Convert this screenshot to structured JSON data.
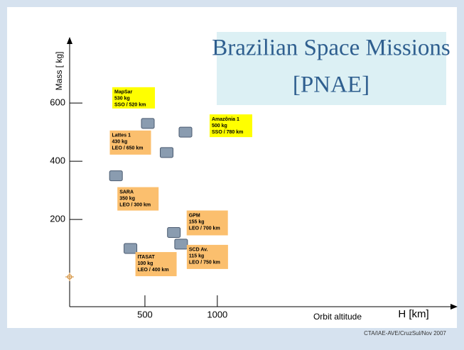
{
  "chart_data": {
    "type": "scatter",
    "title": "Brazilian Space Missions",
    "subtitle": "[PNAE]",
    "y_label": "Mass [ kg]",
    "x_label": "Orbit altitude",
    "x_unit_label": "H [km]",
    "footer": "CTA/IAE-AVE/CruzSul/Nov  2007",
    "categories": [
      "MapSar",
      "Amazônia 1",
      "Lattes 1",
      "SARA",
      "GPM",
      "SCD Av.",
      "ITASAT"
    ],
    "x": [
      520,
      780,
      650,
      300,
      700,
      750,
      400
    ],
    "values": [
      530,
      500,
      430,
      350,
      155,
      115,
      100
    ],
    "value_labels": [
      "530 kg",
      "500 kg",
      "430 kg",
      "350 kg",
      "155 kg",
      "115 kg",
      "100 kg"
    ],
    "x_labels": [
      "SSO / 520 km",
      "SSO / 780 km",
      "LEO / 650 km",
      "LEO / 300 km",
      "LEO / 700 km",
      "LEO / 750 km",
      "LEO / 400 km"
    ],
    "colors": [
      "#ffff00",
      "#ffff00",
      "#fbbf6e",
      "#fbbf6e",
      "#fbbf6e",
      "#fbbf6e",
      "#fbbf6e"
    ],
    "xlim": [
      -20,
      2640
    ],
    "ylim": [
      -100,
      820
    ],
    "xticks": [
      500,
      1000
    ],
    "yticks": [
      200,
      400,
      600
    ]
  }
}
